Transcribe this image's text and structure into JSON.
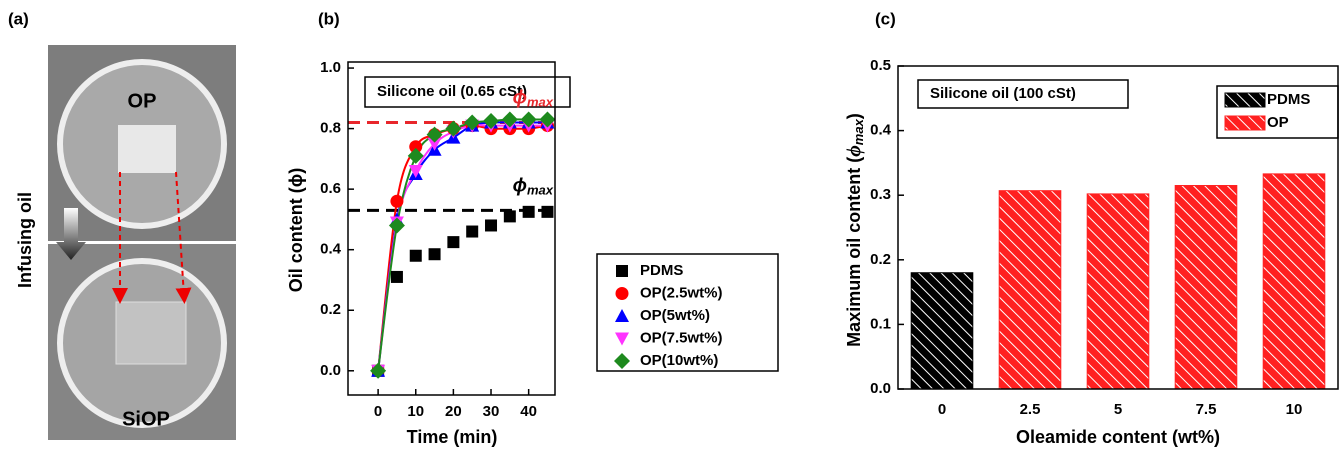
{
  "panel_a": {
    "label": "(a)",
    "top_text": "OP",
    "bottom_text": "SiOP",
    "side_text": "Infusing oil"
  },
  "chart_data": [
    {
      "type": "scatter",
      "panel_label": "(b)",
      "xlabel": "Time (min)",
      "ylabel": "Oil content (ϕ)",
      "annotation": "Silicone oil (0.65 cSt)",
      "x": [
        0,
        5,
        10,
        15,
        20,
        25,
        30,
        35,
        40,
        45
      ],
      "xlim": [
        -8,
        47
      ],
      "xticks": [
        0,
        10,
        20,
        30,
        40
      ],
      "ylim": [
        -0.08,
        1.02
      ],
      "yticks": [
        {
          "value": 0,
          "label": "0.0"
        },
        0.2,
        0.4,
        0.6,
        0.8,
        {
          "value": 1,
          "label": "1.0"
        }
      ],
      "reference_lines": [
        {
          "value": 0.82,
          "color": "#e8262b",
          "symbol": "ϕ",
          "subscript": "max"
        },
        {
          "value": 0.53,
          "color": "#000000",
          "symbol": "ϕ",
          "subscript": "max"
        }
      ],
      "legend": "lower right",
      "series": [
        {
          "name": "PDMS",
          "color": "#000000",
          "marker": "square",
          "line": false,
          "values": [
            0,
            0.31,
            0.38,
            0.385,
            0.425,
            0.46,
            0.48,
            0.51,
            0.525,
            0.525
          ]
        },
        {
          "name": "OP(2.5wt%)",
          "color": "#ff0000",
          "marker": "circle",
          "line": true,
          "values": [
            0,
            0.56,
            0.74,
            0.78,
            0.8,
            0.81,
            0.8,
            0.8,
            0.8,
            0.81
          ]
        },
        {
          "name": "OP(5wt%)",
          "color": "#0000ff",
          "marker": "triangle",
          "line": true,
          "values": [
            0,
            0.5,
            0.65,
            0.73,
            0.77,
            0.81,
            0.82,
            0.82,
            0.82,
            0.82
          ]
        },
        {
          "name": "OP(7.5wt%)",
          "color": "#ff33ff",
          "marker": "triangle-down",
          "line": true,
          "values": [
            0,
            0.49,
            0.66,
            0.75,
            0.79,
            0.81,
            0.81,
            0.81,
            0.81,
            0.81
          ]
        },
        {
          "name": "OP(10wt%)",
          "color": "#1e8a1e",
          "marker": "diamond",
          "line": true,
          "values": [
            0,
            0.48,
            0.71,
            0.78,
            0.8,
            0.82,
            0.825,
            0.83,
            0.83,
            0.83
          ]
        }
      ]
    },
    {
      "type": "bar",
      "panel_label": "(c)",
      "xlabel": "Oleamide content (wt%)",
      "ylabel": {
        "main": "Maximum oil content (",
        "symbol": "ϕ",
        "subscript": "max",
        "close": ")"
      },
      "annotation": "Silicone oil (100 cSt)",
      "categories": [
        "0",
        "2.5",
        "5",
        "7.5",
        "10"
      ],
      "ylim": [
        0,
        0.5
      ],
      "yticks": [
        {
          "value": 0,
          "label": "0.0"
        },
        0.1,
        0.2,
        0.3,
        0.4,
        0.5
      ],
      "legend": "upper right",
      "hatch": true,
      "series": [
        {
          "name": "PDMS",
          "color": "#000000",
          "values": [
            0.18,
            null,
            null,
            null,
            null
          ]
        },
        {
          "name": "OP",
          "color": "#ff2020",
          "values": [
            null,
            0.307,
            0.302,
            0.315,
            0.333
          ]
        }
      ]
    }
  ]
}
